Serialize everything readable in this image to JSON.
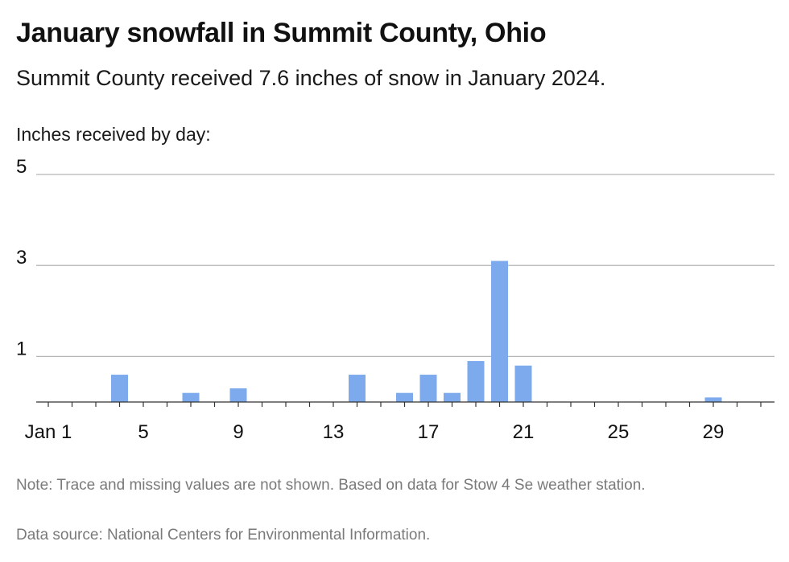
{
  "title": "January snowfall in Summit County, Ohio",
  "subtitle": "Summit County received 7.6 inches of snow in January 2024.",
  "axis_caption": "Inches received by day:",
  "note": "Note: Trace and missing values are not shown. Based on data for Stow 4 Se weather station.",
  "source": "Data source: National Centers for Environmental Information.",
  "colors": {
    "bar": "#7daaed",
    "grid": "#b5b5b5",
    "axis": "#333333"
  },
  "chart_data": {
    "type": "bar",
    "ylabel": "Inches received by day:",
    "ylim": [
      0,
      5
    ],
    "yticks": [
      1,
      3,
      5
    ],
    "xlim": [
      1,
      31
    ],
    "xticks": [
      {
        "day": 1,
        "label": "Jan 1"
      },
      {
        "day": 5,
        "label": "5"
      },
      {
        "day": 9,
        "label": "9"
      },
      {
        "day": 13,
        "label": "13"
      },
      {
        "day": 17,
        "label": "17"
      },
      {
        "day": 21,
        "label": "21"
      },
      {
        "day": 25,
        "label": "25"
      },
      {
        "day": 29,
        "label": "29"
      }
    ],
    "points": [
      {
        "day": 4,
        "value": 0.6
      },
      {
        "day": 7,
        "value": 0.2
      },
      {
        "day": 9,
        "value": 0.3
      },
      {
        "day": 14,
        "value": 0.6
      },
      {
        "day": 16,
        "value": 0.2
      },
      {
        "day": 17,
        "value": 0.6
      },
      {
        "day": 18,
        "value": 0.2
      },
      {
        "day": 19,
        "value": 0.9
      },
      {
        "day": 20,
        "value": 3.1
      },
      {
        "day": 21,
        "value": 0.8
      },
      {
        "day": 29,
        "value": 0.1
      }
    ],
    "grid": true
  }
}
